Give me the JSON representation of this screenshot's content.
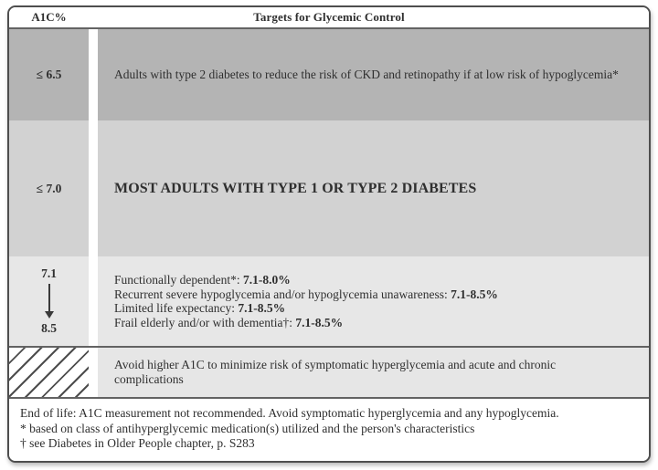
{
  "figure": {
    "header": {
      "a1c_label": "A1C%",
      "title": "Targets for Glycemic Control"
    },
    "row1": {
      "a1c": "≤ 6.5",
      "text": "Adults with type 2 diabetes to reduce the risk of CKD and retinopathy if at low risk of hypoglycemia*"
    },
    "row2": {
      "a1c": "≤ 7.0",
      "text": "MOST ADULTS WITH TYPE 1 OR TYPE 2 DIABETES"
    },
    "row3": {
      "a1c_from": "7.1",
      "a1c_to": "8.5",
      "arrow_icon": "down-arrow",
      "items": [
        {
          "label": "Functionally dependent*: ",
          "range": "7.1-8.0%"
        },
        {
          "label": "Recurrent severe hypoglycemia and/or hypoglycemia unawareness: ",
          "range": "7.1-8.5%"
        },
        {
          "label": "Limited life expectancy: ",
          "range": "7.1-8.5%"
        },
        {
          "label": "Frail elderly and/or with dementia†: ",
          "range": "7.1-8.5%"
        }
      ]
    },
    "row4": {
      "hatch_icon": "diagonal-hatch",
      "text": "Avoid higher A1C to minimize risk of symptomatic hyperglycemia and acute and chronic complications"
    },
    "footnotes": [
      "End of life: A1C measurement not recommended. Avoid symptomatic hyperglycemia and any hypoglycemia.",
      "* based on class of antihyperglycemic medication(s) utilized and the person's characteristics",
      "† see Diabetes in Older People chapter, p. S283"
    ],
    "colors": {
      "row1_bg": "#b4b4b4",
      "row2_bg": "#d2d2d2",
      "row3_bg": "#e7e7e7",
      "row4_bg": "#e6e6e6",
      "separator": "#636363",
      "border": "#4e4e4e",
      "text": "#2f2f2f"
    }
  }
}
